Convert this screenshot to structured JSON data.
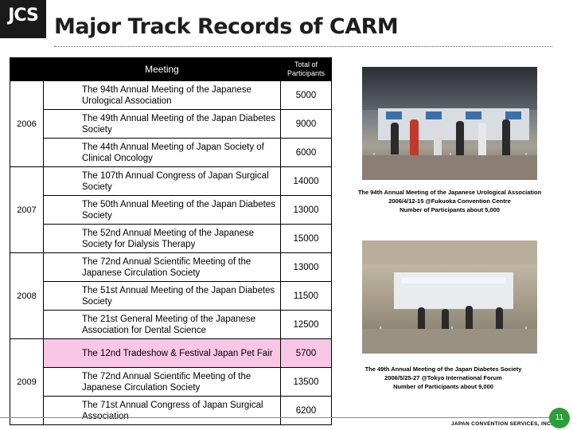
{
  "logo": {
    "text": "JCS"
  },
  "title": "Major Track Records of CARM",
  "table": {
    "header_meeting": "Meeting",
    "header_total": "Total of Participants",
    "groups": [
      {
        "year": "2006",
        "rows": [
          {
            "meeting": "The 94th Annual Meeting of the Japanese Urological Association",
            "participants": "5000",
            "highlight": false
          },
          {
            "meeting": "The 49th Annual Meeting of the Japan Diabetes Society",
            "participants": "9000",
            "highlight": false
          },
          {
            "meeting": "The 44th Annual Meeting of Japan Society of Clinical Oncology",
            "participants": "6000",
            "highlight": false
          }
        ]
      },
      {
        "year": "2007",
        "rows": [
          {
            "meeting": "The 107th Annual Congress of Japan Surgical Society",
            "participants": "14000",
            "highlight": false
          },
          {
            "meeting": "The 50th Annual Meeting of the Japan Diabetes Society",
            "participants": "13000",
            "highlight": false
          },
          {
            "meeting": "The 52nd Annual Meeting of the Japanese Society for Dialysis Therapy",
            "participants": "15000",
            "highlight": false
          }
        ]
      },
      {
        "year": "2008",
        "rows": [
          {
            "meeting": "The 72nd Annual Scientific Meeting of the Japanese Circulation Society",
            "participants": "13000",
            "highlight": false
          },
          {
            "meeting": "The 51st Annual Meeting of the Japan Diabetes Society",
            "participants": "11500",
            "highlight": false
          },
          {
            "meeting": "The 21st General Meeting of the Japanese Association for Dental Science",
            "participants": "12500",
            "highlight": false
          }
        ]
      },
      {
        "year": "2009",
        "rows": [
          {
            "meeting": "The 12nd Tradeshow & Festival Japan Pet Fair",
            "participants": "5700",
            "highlight": true
          },
          {
            "meeting": "The 72nd Annual Scientific Meeting of the Japanese Circulation Society",
            "participants": "13500",
            "highlight": false
          },
          {
            "meeting": "The 71st Annual Congress of Japan Surgical Association",
            "participants": "6200",
            "highlight": false
          }
        ]
      }
    ]
  },
  "photos": [
    {
      "caption_lines": [
        "The 94th Annual Meeting of the Japanese Urological Association",
        "2006/4/12-15 @Fukuoka Convention Centre",
        "Number of Participants about 5,000"
      ]
    },
    {
      "caption_lines": [
        "The 49th Annual Meeting of the Japan Diabetes Society",
        "2006/5/25-27 @Tokyo International Forum",
        "Number of Participants about 9,000"
      ]
    }
  ],
  "footer": {
    "brand": "JAPAN CONVENTION SERVICES, INC.",
    "page_number": "11"
  }
}
